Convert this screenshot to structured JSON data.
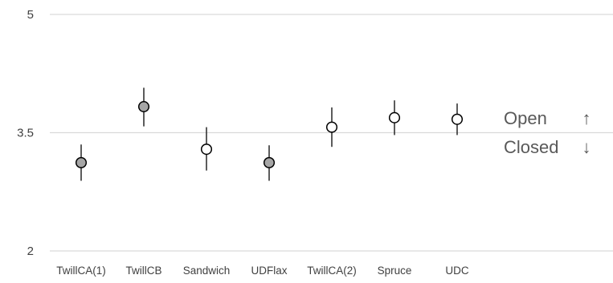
{
  "chart_data": {
    "type": "scatter",
    "categories": [
      "TwillCA(1)",
      "TwillCB",
      "Sandwich",
      "UDFlax",
      "TwillCA(2)",
      "Spruce",
      "UDC"
    ],
    "values": [
      3.12,
      3.83,
      3.29,
      3.12,
      3.57,
      3.69,
      3.67
    ],
    "error_low": [
      2.89,
      3.58,
      3.02,
      2.89,
      3.32,
      3.47,
      3.47
    ],
    "error_high": [
      3.35,
      4.07,
      3.57,
      3.34,
      3.82,
      3.91,
      3.87
    ],
    "marker_fill": [
      "#a6a6a6",
      "#a6a6a6",
      "#ffffff",
      "#a6a6a6",
      "#ffffff",
      "#ffffff",
      "#ffffff"
    ],
    "ylim": [
      2,
      5
    ],
    "yticks": [
      "5",
      "3.5",
      "2"
    ],
    "ytick_values": [
      5,
      3.5,
      2
    ],
    "grid": true,
    "xlabel": "",
    "ylabel": "",
    "title": "",
    "annotations": {
      "open_label": "Open",
      "open_arrow": "↑",
      "closed_label": "Closed",
      "closed_arrow": "↓"
    },
    "colors": {
      "gridline": "#d9d9d9",
      "errorbar": "#262626",
      "marker_edge": "#000000"
    }
  }
}
